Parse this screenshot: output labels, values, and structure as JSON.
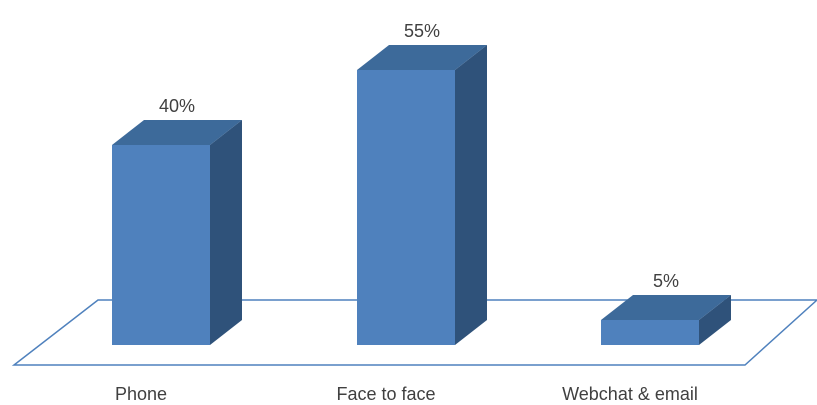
{
  "chart_data": {
    "type": "bar",
    "style": "3d-column",
    "categories": [
      "Phone",
      "Face to face",
      "Webchat & email"
    ],
    "values": [
      40,
      55,
      5
    ],
    "data_labels": [
      "40%",
      "55%",
      "5%"
    ],
    "unit": "%",
    "ylim": [
      0,
      55
    ],
    "grid": false,
    "legend": "none",
    "colors": {
      "front": "#4f81bd",
      "top": "#3d6a9a",
      "side": "#2f527a",
      "floor_outline": "#4f81bd",
      "text": "#404040"
    }
  }
}
